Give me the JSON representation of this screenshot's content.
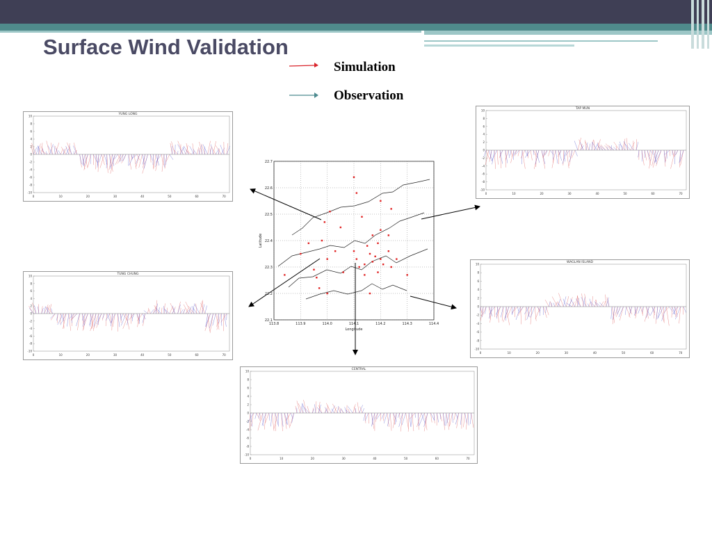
{
  "slide": {
    "title": "Surface Wind Validation"
  },
  "legend": {
    "simulation_label": "Simulation",
    "observation_label": "Observation",
    "simulation_color": "#d9232a",
    "observation_color": "#4c8a8f"
  },
  "colors": {
    "topbar": "#3f3f55",
    "accent": "#4f8a8b",
    "title_text": "#4a4a64",
    "simulation_arrow": "#e06060",
    "observation_arrow": "#5a5acc"
  },
  "chart_data": [
    {
      "type": "quiver",
      "name": "yung-long",
      "title": "YUNG LONG",
      "y_ticks": [
        "10",
        "8",
        "6",
        "4",
        "2",
        "0",
        "-2",
        "-4",
        "-6",
        "-8",
        "-10"
      ],
      "x_ticks": [
        "0",
        "10",
        "20",
        "30",
        "40",
        "50",
        "60",
        "70"
      ],
      "ylim": [
        -10,
        10
      ],
      "xlim": [
        0,
        72
      ]
    },
    {
      "type": "quiver",
      "name": "tung-chung",
      "title": "TUNG CHUNG",
      "y_ticks": [
        "10",
        "8",
        "6",
        "4",
        "2",
        "0",
        "-2",
        "-4",
        "-6",
        "-8",
        "-10"
      ],
      "x_ticks": [
        "0",
        "10",
        "20",
        "30",
        "40",
        "50",
        "60",
        "70"
      ],
      "ylim": [
        -10,
        10
      ],
      "xlim": [
        0,
        72
      ]
    },
    {
      "type": "quiver",
      "name": "tap-mun",
      "title": "TAP MUN",
      "y_ticks": [
        "10",
        "8",
        "6",
        "4",
        "2",
        "0",
        "-2",
        "-4",
        "-6",
        "-8",
        "-10"
      ],
      "x_ticks": [
        "0",
        "10",
        "20",
        "30",
        "40",
        "50",
        "60",
        "70"
      ],
      "ylim": [
        -10,
        10
      ],
      "xlim": [
        0,
        72
      ]
    },
    {
      "type": "quiver",
      "name": "waglan-island",
      "title": "WAGLAN ISLAND",
      "y_ticks": [
        "10",
        "8",
        "6",
        "4",
        "2",
        "0",
        "-2",
        "-4",
        "-6",
        "-8",
        "-10"
      ],
      "x_ticks": [
        "0",
        "10",
        "20",
        "30",
        "40",
        "50",
        "60",
        "70"
      ],
      "ylim": [
        -10,
        10
      ],
      "xlim": [
        0,
        72
      ]
    },
    {
      "type": "quiver",
      "name": "central",
      "title": "CENTRAL",
      "y_ticks": [
        "10",
        "8",
        "6",
        "4",
        "2",
        "0",
        "-2",
        "-4",
        "-6",
        "-8",
        "-10"
      ],
      "x_ticks": [
        "0",
        "10",
        "20",
        "30",
        "40",
        "50",
        "60",
        "70"
      ],
      "ylim": [
        -10,
        10
      ],
      "xlim": [
        0,
        72
      ]
    },
    {
      "type": "scatter",
      "name": "station-map",
      "xlabel": "Longitude",
      "ylabel": "Latitude",
      "x_ticks": [
        "113.8",
        "113.9",
        "114.0",
        "114.1",
        "114.2",
        "114.3",
        "114.4"
      ],
      "y_ticks": [
        "22.7",
        "22.6",
        "22.5",
        "22.4",
        "22.3",
        "22.2",
        "22.1"
      ],
      "xlim": [
        113.8,
        114.4
      ],
      "ylim": [
        22.1,
        22.7
      ],
      "point_color": "#e02020",
      "points": [
        [
          114.01,
          22.51
        ],
        [
          113.99,
          22.47
        ],
        [
          114.1,
          22.64
        ],
        [
          114.11,
          22.58
        ],
        [
          114.13,
          22.49
        ],
        [
          114.2,
          22.55
        ],
        [
          114.24,
          22.52
        ],
        [
          114.2,
          22.44
        ],
        [
          114.17,
          22.42
        ],
        [
          114.23,
          22.42
        ],
        [
          114.19,
          22.39
        ],
        [
          114.15,
          22.38
        ],
        [
          114.05,
          22.45
        ],
        [
          113.98,
          22.4
        ],
        [
          113.93,
          22.39
        ],
        [
          114.16,
          22.35
        ],
        [
          114.18,
          22.34
        ],
        [
          114.2,
          22.33
        ],
        [
          114.17,
          22.32
        ],
        [
          114.21,
          22.31
        ],
        [
          114.14,
          22.31
        ],
        [
          114.12,
          22.3
        ],
        [
          114.03,
          22.36
        ],
        [
          114.0,
          22.33
        ],
        [
          113.95,
          22.29
        ],
        [
          113.9,
          22.35
        ],
        [
          113.96,
          22.26
        ],
        [
          113.97,
          22.22
        ],
        [
          114.1,
          22.36
        ],
        [
          114.06,
          22.28
        ],
        [
          114.26,
          22.33
        ],
        [
          114.3,
          22.27
        ],
        [
          114.14,
          22.27
        ],
        [
          114.23,
          22.36
        ],
        [
          114.0,
          22.2
        ],
        [
          114.16,
          22.2
        ],
        [
          113.84,
          22.27
        ],
        [
          114.19,
          22.28
        ],
        [
          114.11,
          22.33
        ],
        [
          114.24,
          22.3
        ]
      ]
    }
  ]
}
